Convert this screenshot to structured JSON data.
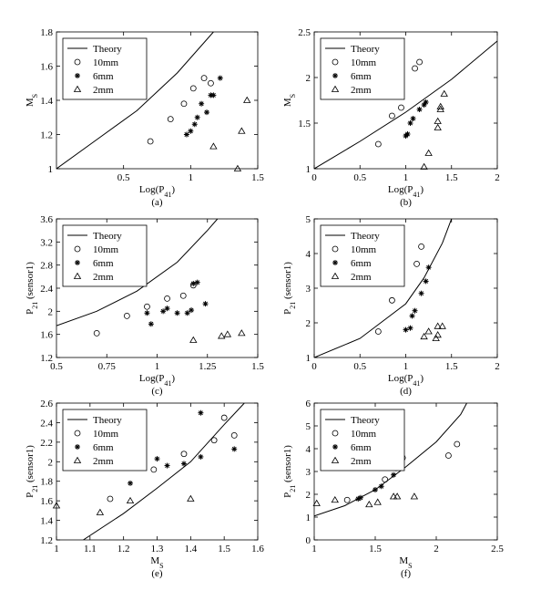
{
  "chart_data": [
    {
      "type": "scatter",
      "caption": "(a)",
      "xlabel": [
        "Log(P",
        "41",
        ")"
      ],
      "ylabel": [
        "M",
        "S"
      ],
      "xlim": [
        0,
        1.5
      ],
      "xticks": [
        0.5,
        1,
        1.5
      ],
      "ylim": [
        1,
        1.8
      ],
      "yticks": [
        1,
        1.2,
        1.4,
        1.6,
        1.8
      ],
      "legend": "upper left",
      "series": [
        {
          "name": "Theory",
          "marker": "line",
          "color": "#000000",
          "x": [
            0,
            0.3,
            0.6,
            0.9,
            1.17
          ],
          "values": [
            1,
            1.17,
            1.34,
            1.56,
            1.8
          ]
        },
        {
          "name": "10mm",
          "marker": "circle",
          "color": "#000000",
          "x": [
            0.7,
            0.85,
            0.95,
            1.02,
            1.1,
            1.15
          ],
          "values": [
            1.16,
            1.29,
            1.38,
            1.47,
            1.53,
            1.5
          ]
        },
        {
          "name": "6mm",
          "marker": "star",
          "color": "#000000",
          "x": [
            0.97,
            1.0,
            1.03,
            1.05,
            1.08,
            1.12,
            1.15,
            1.17,
            1.22
          ],
          "values": [
            1.2,
            1.22,
            1.26,
            1.3,
            1.38,
            1.33,
            1.43,
            1.43,
            1.53
          ]
        },
        {
          "name": "2mm",
          "marker": "triangle",
          "color": "#000000",
          "x": [
            1.17,
            1.35,
            1.38,
            1.42
          ],
          "values": [
            1.13,
            1.0,
            1.22,
            1.4
          ]
        }
      ]
    },
    {
      "type": "scatter",
      "caption": "(b)",
      "xlabel": [
        "Log(P",
        "41",
        ")"
      ],
      "ylabel": [
        "M",
        "S"
      ],
      "xlim": [
        0,
        2
      ],
      "xticks": [
        0,
        0.5,
        1,
        1.5,
        2
      ],
      "ylim": [
        1,
        2.5
      ],
      "yticks": [
        1,
        1.5,
        2,
        2.5
      ],
      "legend": "upper left",
      "series": [
        {
          "name": "Theory",
          "marker": "line",
          "color": "#000000",
          "x": [
            0,
            0.5,
            1,
            1.5,
            2
          ],
          "values": [
            1,
            1.3,
            1.62,
            1.98,
            2.4
          ]
        },
        {
          "name": "10mm",
          "marker": "circle",
          "color": "#000000",
          "x": [
            0.7,
            0.85,
            0.95,
            1.1,
            1.15
          ],
          "values": [
            1.27,
            1.58,
            1.67,
            2.1,
            2.17
          ]
        },
        {
          "name": "6mm",
          "marker": "star",
          "color": "#000000",
          "x": [
            1.0,
            1.02,
            1.05,
            1.08,
            1.15,
            1.2,
            1.22
          ],
          "values": [
            1.36,
            1.38,
            1.5,
            1.55,
            1.65,
            1.7,
            1.73
          ]
        },
        {
          "name": "2mm",
          "marker": "triangle",
          "color": "#000000",
          "x": [
            1.2,
            1.25,
            1.35,
            1.35,
            1.38,
            1.38,
            1.42
          ],
          "values": [
            1.02,
            1.17,
            1.45,
            1.52,
            1.65,
            1.68,
            1.82
          ]
        }
      ]
    },
    {
      "type": "scatter",
      "caption": "(c)",
      "xlabel": [
        "Log(P",
        "41",
        ")"
      ],
      "ylabel": [
        "P",
        "21",
        " (sensor1)"
      ],
      "xlim": [
        0.5,
        1.5
      ],
      "xticks": [
        0.5,
        0.75,
        1,
        1.25,
        1.5
      ],
      "ylim": [
        1.2,
        3.6
      ],
      "yticks": [
        1.2,
        1.6,
        2,
        2.4,
        2.8,
        3.2,
        3.6
      ],
      "legend": "upper left",
      "series": [
        {
          "name": "Theory",
          "marker": "line",
          "color": "#000000",
          "x": [
            0.5,
            0.7,
            0.9,
            1.1,
            1.25,
            1.3
          ],
          "values": [
            1.75,
            2.0,
            2.35,
            2.85,
            3.4,
            3.6
          ]
        },
        {
          "name": "10mm",
          "marker": "circle",
          "color": "#000000",
          "x": [
            0.7,
            0.85,
            0.95,
            1.05,
            1.13,
            1.18
          ],
          "values": [
            1.62,
            1.92,
            2.08,
            2.22,
            2.27,
            2.45
          ]
        },
        {
          "name": "6mm",
          "marker": "star",
          "color": "#000000",
          "x": [
            0.97,
            0.95,
            1.03,
            1.05,
            1.1,
            1.15,
            1.17,
            1.18,
            1.2,
            1.24
          ],
          "values": [
            1.78,
            1.97,
            2.0,
            2.05,
            1.97,
            1.97,
            2.02,
            2.48,
            2.5,
            2.13
          ]
        },
        {
          "name": "2mm",
          "marker": "triangle",
          "color": "#000000",
          "x": [
            1.18,
            1.32,
            1.35,
            1.42
          ],
          "values": [
            1.5,
            1.57,
            1.6,
            1.62
          ]
        }
      ]
    },
    {
      "type": "scatter",
      "caption": "(d)",
      "xlabel": [
        "Log(P",
        "41",
        ")"
      ],
      "ylabel": [
        "P",
        "21",
        " (sensor1)"
      ],
      "xlim": [
        0,
        2
      ],
      "xticks": [
        0,
        0.5,
        1,
        1.5,
        2
      ],
      "ylim": [
        1,
        5
      ],
      "yticks": [
        1,
        2,
        3,
        4,
        5
      ],
      "legend": "upper left",
      "series": [
        {
          "name": "Theory",
          "marker": "line",
          "color": "#000000",
          "x": [
            0,
            0.5,
            1,
            1.2,
            1.4,
            1.5
          ],
          "values": [
            1,
            1.55,
            2.55,
            3.3,
            4.3,
            5
          ]
        },
        {
          "name": "10mm",
          "marker": "circle",
          "color": "#000000",
          "x": [
            0.7,
            0.85,
            0.95,
            1.12,
            1.17
          ],
          "values": [
            1.75,
            2.65,
            3.15,
            3.7,
            4.2
          ]
        },
        {
          "name": "6mm",
          "marker": "star",
          "color": "#000000",
          "x": [
            1.0,
            1.05,
            1.07,
            1.1,
            1.17,
            1.22,
            1.25
          ],
          "values": [
            1.8,
            1.85,
            2.2,
            2.35,
            2.85,
            3.2,
            3.6
          ]
        },
        {
          "name": "2mm",
          "marker": "triangle",
          "color": "#000000",
          "x": [
            1.2,
            1.25,
            1.33,
            1.35,
            1.35,
            1.4
          ],
          "values": [
            1.6,
            1.75,
            1.55,
            1.65,
            1.9,
            1.9
          ]
        }
      ]
    },
    {
      "type": "scatter",
      "caption": "(e)",
      "xlabel": [
        "M",
        "S"
      ],
      "ylabel": [
        "P",
        "21",
        " (sensor1)"
      ],
      "xlim": [
        1,
        1.6
      ],
      "xticks": [
        1,
        1.1,
        1.2,
        1.3,
        1.4,
        1.5,
        1.6
      ],
      "ylim": [
        1.2,
        2.6
      ],
      "yticks": [
        1.2,
        1.4,
        1.6,
        1.8,
        2,
        2.2,
        2.4,
        2.6
      ],
      "legend": "upper left",
      "series": [
        {
          "name": "Theory",
          "marker": "line",
          "color": "#000000",
          "x": [
            1.08,
            1.2,
            1.3,
            1.4,
            1.5,
            1.56
          ],
          "values": [
            1.2,
            1.47,
            1.73,
            2.0,
            2.38,
            2.6
          ]
        },
        {
          "name": "10mm",
          "marker": "circle",
          "color": "#000000",
          "x": [
            1.16,
            1.29,
            1.38,
            1.47,
            1.5,
            1.53
          ],
          "values": [
            1.62,
            1.92,
            2.08,
            2.22,
            2.45,
            2.27
          ]
        },
        {
          "name": "6mm",
          "marker": "star",
          "color": "#000000",
          "x": [
            1.2,
            1.22,
            1.26,
            1.3,
            1.33,
            1.38,
            1.43,
            1.43,
            1.53
          ],
          "values": [
            1.98,
            1.78,
            1.97,
            2.03,
            1.96,
            1.98,
            2.05,
            2.5,
            2.13
          ]
        },
        {
          "name": "2mm",
          "marker": "triangle",
          "color": "#000000",
          "x": [
            1.0,
            1.13,
            1.22,
            1.4
          ],
          "values": [
            1.55,
            1.48,
            1.6,
            1.62
          ]
        }
      ]
    },
    {
      "type": "scatter",
      "caption": "(f)",
      "xlabel": [
        "M",
        "S"
      ],
      "ylabel": [
        "P",
        "21",
        " (sensor1)"
      ],
      "xlim": [
        1,
        2.5
      ],
      "xticks": [
        1,
        1.5,
        2,
        2.5
      ],
      "ylim": [
        0,
        6
      ],
      "yticks": [
        0,
        1,
        2,
        3,
        4,
        5,
        6
      ],
      "legend": "upper left",
      "series": [
        {
          "name": "Theory",
          "marker": "line",
          "color": "#000000",
          "x": [
            1,
            1.25,
            1.5,
            1.75,
            2,
            2.2,
            2.25
          ],
          "values": [
            1.05,
            1.5,
            2.2,
            3.2,
            4.3,
            5.5,
            6
          ]
        },
        {
          "name": "10mm",
          "marker": "circle",
          "color": "#000000",
          "x": [
            1.27,
            1.58,
            1.67,
            2.1,
            2.17
          ],
          "values": [
            1.75,
            2.65,
            3.15,
            3.7,
            4.2
          ]
        },
        {
          "name": "6mm",
          "marker": "star",
          "color": "#000000",
          "x": [
            1.36,
            1.38,
            1.5,
            1.55,
            1.65,
            1.7,
            1.73
          ],
          "values": [
            1.8,
            1.85,
            2.2,
            2.35,
            2.85,
            3.2,
            3.6
          ]
        },
        {
          "name": "2mm",
          "marker": "triangle",
          "color": "#000000",
          "x": [
            1.02,
            1.17,
            1.45,
            1.52,
            1.65,
            1.68,
            1.82
          ],
          "values": [
            1.6,
            1.75,
            1.55,
            1.65,
            1.9,
            1.9,
            1.9
          ]
        }
      ]
    }
  ]
}
